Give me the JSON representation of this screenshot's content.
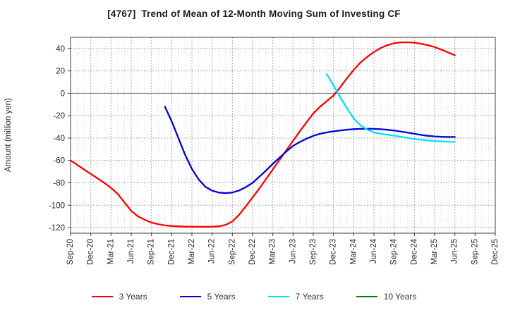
{
  "chart_data": {
    "type": "line",
    "title": "[4767]  Trend of Mean of 12-Month Moving Sum of Investing CF",
    "xlabel": "",
    "ylabel": "Amount (million yen)",
    "x_tick_labels": [
      "Sep-20",
      "Dec-20",
      "Mar-21",
      "Jun-21",
      "Sep-21",
      "Dec-21",
      "Mar-22",
      "Jun-22",
      "Sep-22",
      "Dec-22",
      "Mar-23",
      "Jun-23",
      "Sep-23",
      "Dec-23",
      "Mar-24",
      "Jun-24",
      "Sep-24",
      "Dec-24",
      "Mar-25",
      "Jun-25",
      "Sep-25",
      "Dec-25"
    ],
    "x_unit": "month",
    "x_months_total": 63,
    "ylim": [
      -125,
      50
    ],
    "yticks": [
      40,
      20,
      0,
      -20,
      -40,
      -60,
      -80,
      -100,
      -120
    ],
    "grid": "on (dotted monthly verticals, dashed quarterly verticals, dashed horizontals every 20, solid zero line)",
    "legend_position": "bottom-center",
    "series": [
      {
        "name": "3 Years",
        "color": "#ff0000",
        "x_start": "Sep-20",
        "start_month": 0,
        "values": [
          -60,
          -64,
          -68,
          -72,
          -76,
          -80,
          -84.5,
          -90,
          -97.5,
          -105,
          -110,
          -113,
          -115.5,
          -117,
          -118,
          -118.6,
          -118.9,
          -119.1,
          -119.2,
          -119.3,
          -119.3,
          -119.2,
          -118.8,
          -117.5,
          -114.5,
          -108.5,
          -101,
          -93,
          -85,
          -76.5,
          -68,
          -59.5,
          -51,
          -42.5,
          -34,
          -26,
          -18,
          -12,
          -7,
          -2,
          5.5,
          13.5,
          21,
          27.5,
          32.5,
          37,
          40.5,
          43,
          44.8,
          45.5,
          45.6,
          45.2,
          44.3,
          43,
          41.3,
          39,
          36.5,
          34
        ]
      },
      {
        "name": "5 Years",
        "color": "#0000dd",
        "x_start": "Nov-21",
        "start_month": 14,
        "values": [
          -12,
          -25,
          -40,
          -55,
          -67.5,
          -77,
          -83.5,
          -87,
          -88.7,
          -89.2,
          -88.7,
          -86.8,
          -83.8,
          -80,
          -74.5,
          -69,
          -63,
          -57.5,
          -52,
          -47,
          -43.5,
          -40.5,
          -38,
          -36.2,
          -35,
          -34,
          -33.2,
          -32.5,
          -32,
          -31.8,
          -31.7,
          -31.8,
          -32.1,
          -32.6,
          -33.3,
          -34.2,
          -35.2,
          -36.2,
          -37.2,
          -38,
          -38.5,
          -38.8,
          -39,
          -39
        ]
      },
      {
        "name": "7 Years",
        "color": "#00e5ee",
        "x_start": "Nov-23",
        "start_month": 38,
        "values": [
          17,
          7,
          -3.5,
          -13.5,
          -22.5,
          -28.5,
          -32.5,
          -35,
          -36.2,
          -37,
          -37.8,
          -38.8,
          -39.8,
          -40.8,
          -41.5,
          -42.1,
          -42.6,
          -43,
          -43.2,
          -43.4
        ]
      },
      {
        "name": "10 Years",
        "color": "#008000",
        "x_start": null,
        "start_month": null,
        "values": []
      }
    ]
  },
  "colors": {
    "background": "#ffffff",
    "plot_border": "#3c3c3c",
    "grid_major": "#aaaaaa",
    "grid_minor": "#d6d6d6",
    "zero_line": "#808080",
    "tick_text": "#262626",
    "title_text": "#1a1a1a",
    "legend_text": "#333333"
  }
}
